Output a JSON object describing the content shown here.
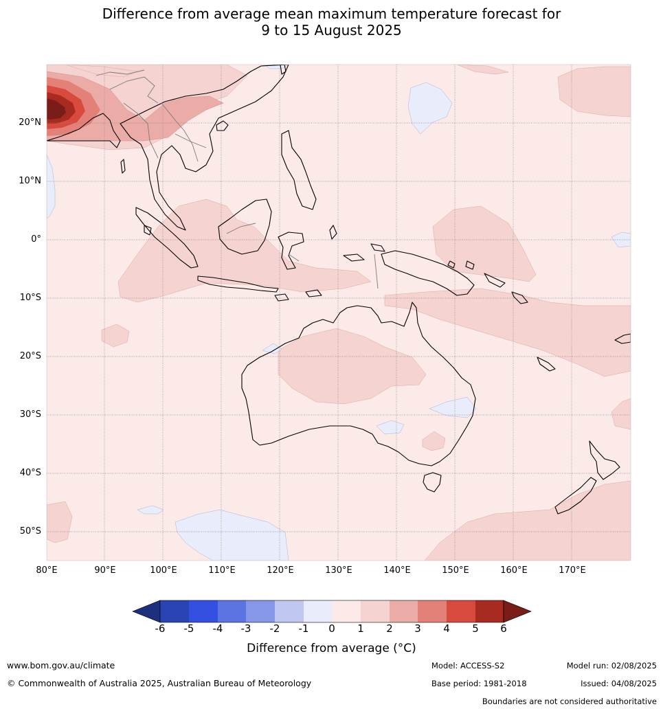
{
  "title_line1": "Difference from average mean maximum temperature forecast for",
  "title_line2": "9 to 15 August 2025",
  "map": {
    "region": "Australia and surrounding region",
    "lon_range": [
      80,
      180
    ],
    "lat_range": [
      -55,
      30
    ],
    "lat_labels": [
      "20°N",
      "10°N",
      "0°",
      "10°S",
      "20°S",
      "30°S",
      "40°S",
      "50°S"
    ],
    "lon_labels": [
      "80°E",
      "90°E",
      "100°E",
      "110°E",
      "120°E",
      "130°E",
      "140°E",
      "150°E",
      "160°E",
      "170°E"
    ],
    "background_color": "#fbeae8"
  },
  "colorbar": {
    "title": "Difference from average (°C)",
    "tick_labels": [
      "-6",
      "-5",
      "-4",
      "-3",
      "-2",
      "-1",
      "0",
      "1",
      "2",
      "3",
      "4",
      "5",
      "6"
    ],
    "colors": [
      "#1f2f80",
      "#2a44b3",
      "#3350e0",
      "#5b74e2",
      "#8697ea",
      "#c0c8f2",
      "#e8ecfb",
      "#fbeae8",
      "#f4d3d0",
      "#ebaca7",
      "#e38179",
      "#d84a3e",
      "#a82b22",
      "#7a1d18"
    ]
  },
  "footer": {
    "website": "www.bom.gov.au/climate",
    "copyright": "© Commonwealth of Australia 2025, Australian Bureau of Meteorology",
    "model": "Model: ACCESS-S2",
    "base_period": "Base period: 1981-2018",
    "model_run": "Model run: 02/08/2025",
    "issued": "Issued: 04/08/2025",
    "disclaimer": "Boundaries are not considered authoritative"
  }
}
